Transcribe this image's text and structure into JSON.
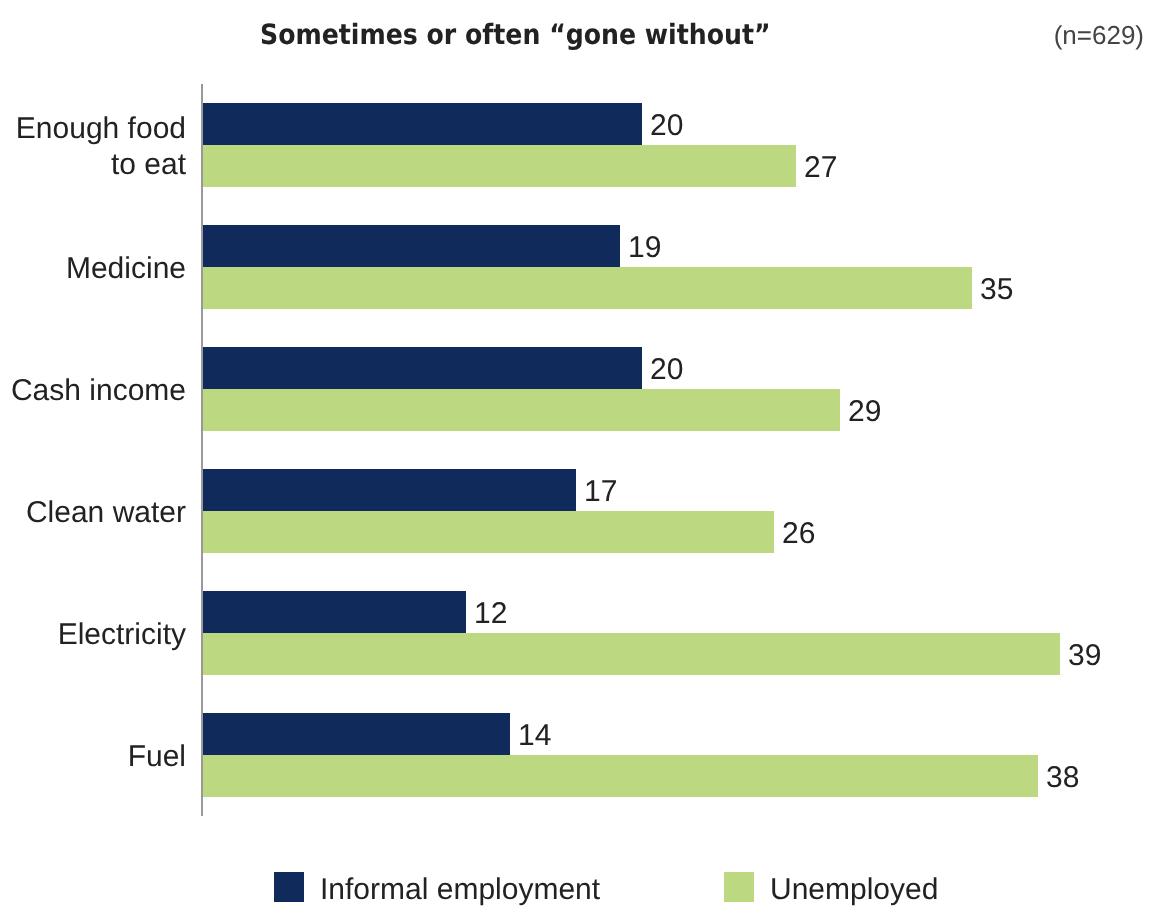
{
  "chart_data": {
    "type": "bar",
    "orientation": "horizontal",
    "title": "Sometimes or often “gone without”",
    "annotations": [
      "(n=629)"
    ],
    "categories": [
      "Enough food to eat",
      "Medicine",
      "Cash income",
      "Clean water",
      "Electricity",
      "Fuel"
    ],
    "series": [
      {
        "name": "Informal employment",
        "color": "#102a5c",
        "values": [
          20,
          19,
          20,
          17,
          12,
          14
        ]
      },
      {
        "name": "Unemployed",
        "color": "#bcd982",
        "values": [
          27,
          35,
          29,
          26,
          39,
          38
        ]
      }
    ],
    "data_labels": true,
    "legend": "bottom",
    "grid": false
  }
}
